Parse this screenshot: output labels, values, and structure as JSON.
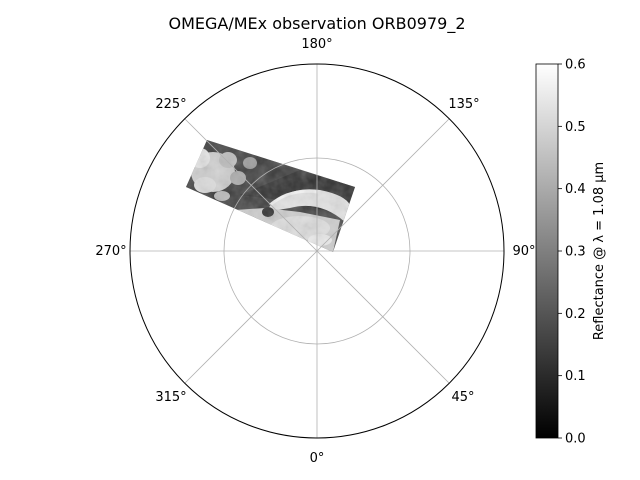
{
  "chart_data": {
    "type": "polar-image",
    "title": "OMEGA/MEx observation ORB0979_2",
    "angular_ticks": [
      "0°",
      "45°",
      "90°",
      "135°",
      "180°",
      "225°",
      "270°",
      "315°"
    ],
    "angular_tick_angles_deg": [
      0,
      45,
      90,
      135,
      180,
      225,
      270,
      315
    ],
    "radial_gridlines": 2,
    "grid": true,
    "colormap": "gray",
    "colorbar": {
      "label": "Reflectance @ λ = 1.08 µm",
      "range": [
        0,
        0.6
      ],
      "ticks": [
        "0.0",
        "0.1",
        "0.2",
        "0.3",
        "0.4",
        "0.5",
        "0.6"
      ],
      "tick_values": [
        0.0,
        0.1,
        0.2,
        0.3,
        0.4,
        0.5,
        0.6
      ],
      "placement": "right"
    },
    "observation_strip": {
      "description_regions": [
        {
          "region": "upper-left bright cloudy patches",
          "reflectance": 0.45
        },
        {
          "region": "dark central band",
          "reflectance": 0.18
        },
        {
          "region": "bright polar cap edge",
          "reflectance": 0.5
        },
        {
          "region": "lower right bright area",
          "reflectance": 0.48
        }
      ]
    }
  }
}
